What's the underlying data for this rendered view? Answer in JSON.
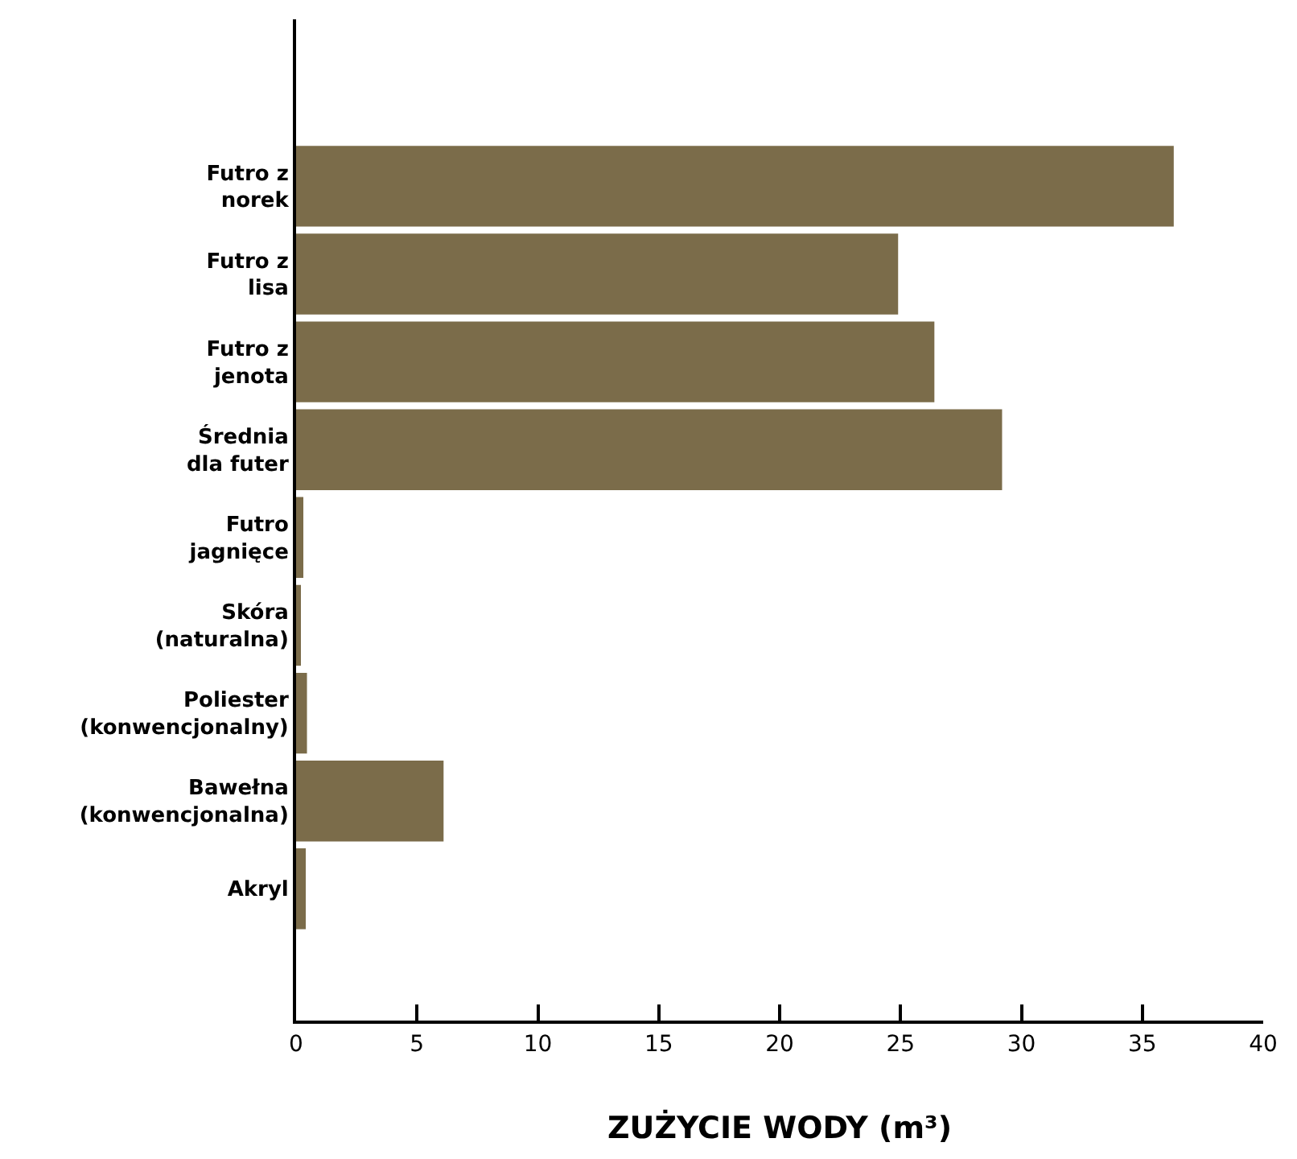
{
  "chart_data": {
    "type": "bar",
    "orientation": "horizontal",
    "xlabel": "ZUŻYCIE WODY (m³)",
    "categories": [
      "Futro z\nnorek",
      "Futro z\nlisa",
      "Futro z\njenota",
      "Średnia\ndla futer",
      "Futro\njagnięce",
      "Skóra\n(naturalna)",
      "Poliester\n(konwencjonalny)",
      "Bawełna\n(konwencjonalna)",
      "Akryl"
    ],
    "values": [
      36.3,
      24.9,
      26.4,
      29.2,
      0.3,
      0.2,
      0.45,
      6.1,
      0.4
    ],
    "color": "#7b6c4a",
    "xlim": [
      0,
      40
    ],
    "xticks": [
      0,
      5,
      10,
      15,
      20,
      25,
      30,
      35,
      40
    ]
  }
}
